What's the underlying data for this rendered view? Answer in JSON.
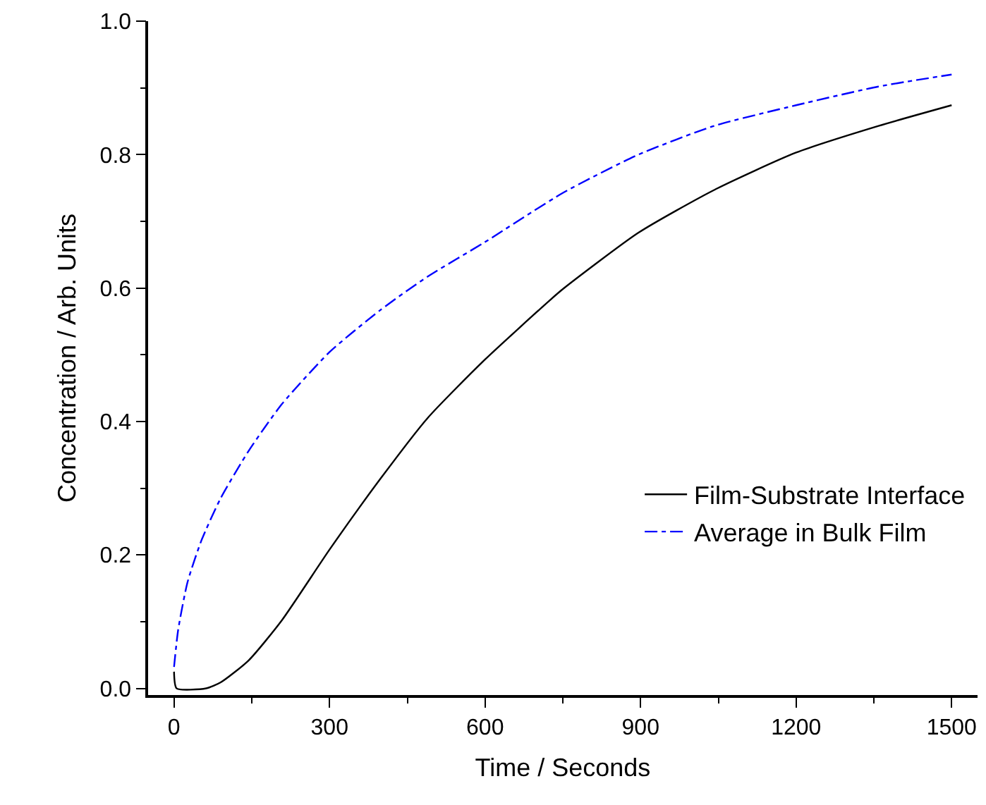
{
  "chart_data": {
    "type": "line",
    "xlabel": "Time / Seconds",
    "ylabel": "Concentration / Arb. Units",
    "xlim": [
      -50,
      1550
    ],
    "ylim": [
      -0.01,
      1.0
    ],
    "xticks": [
      0,
      {
        "value": 150,
        "label": null
      },
      300,
      {
        "value": 450,
        "label": null
      },
      600,
      {
        "value": 750,
        "label": null
      },
      900,
      {
        "value": 1050,
        "label": null
      },
      1200,
      {
        "value": 1350,
        "label": null
      },
      1500
    ],
    "yticks": [
      {
        "value": 0,
        "label": "0.0"
      },
      {
        "value": 0.1,
        "label": null
      },
      {
        "value": 0.2,
        "label": "0.2"
      },
      {
        "value": 0.3,
        "label": null
      },
      {
        "value": 0.4,
        "label": "0.4"
      },
      {
        "value": 0.5,
        "label": null
      },
      {
        "value": 0.6,
        "label": "0.6"
      },
      {
        "value": 0.7,
        "label": null
      },
      {
        "value": 0.8,
        "label": "0.8"
      },
      {
        "value": 0.9,
        "label": null
      },
      {
        "value": 1.0,
        "label": "1.0"
      }
    ],
    "legend": "right",
    "marker": "none",
    "series": [
      {
        "name": "Film-Substrate Interface",
        "color": "#000000",
        "line_style": "solid",
        "x": [
          0,
          5,
          62,
          90,
          144,
          208,
          300,
          398,
          489,
          600,
          724,
          751,
          896,
          1042,
          1200,
          1359,
          1500
        ],
        "values": [
          0.025,
          0.0,
          0.0,
          0.009,
          0.042,
          0.102,
          0.208,
          0.314,
          0.405,
          0.493,
          0.581,
          0.599,
          0.683,
          0.747,
          0.803,
          0.843,
          0.874
        ]
      },
      {
        "name": "Average in Bulk Film",
        "color": "#0000ff",
        "line_style": "dashdot",
        "x": [
          0,
          8,
          26,
          53,
          90,
          144,
          208,
          300,
          398,
          489,
          600,
          751,
          896,
          1042,
          1200,
          1359,
          1500
        ],
        "values": [
          0.032,
          0.088,
          0.159,
          0.222,
          0.285,
          0.356,
          0.426,
          0.504,
          0.567,
          0.617,
          0.669,
          0.743,
          0.8,
          0.843,
          0.874,
          0.902,
          0.92
        ]
      }
    ]
  }
}
